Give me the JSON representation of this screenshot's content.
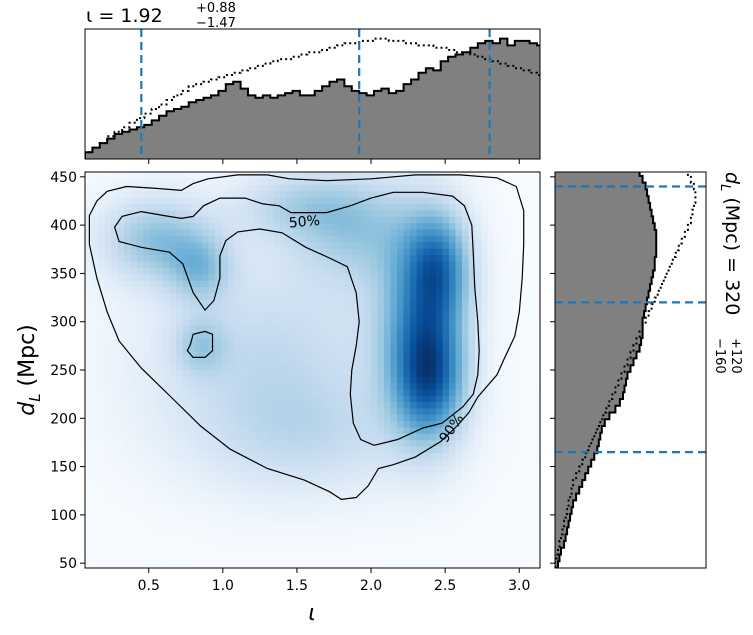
{
  "chart_data": [
    {
      "type": "heatmap",
      "panel": "joint",
      "xlabel": "ι",
      "ylabel_main": "d",
      "ylabel_sub": "L",
      "ylabel_unit": " (Mpc)",
      "xlim": [
        0.07,
        3.14
      ],
      "ylim": [
        45,
        455
      ],
      "xticks": [
        0.5,
        1.0,
        1.5,
        2.0,
        2.5,
        3.0
      ],
      "yticks": [
        50,
        100,
        150,
        200,
        250,
        300,
        350,
        400,
        450
      ],
      "colormap": "Blues",
      "density_blobs": [
        {
          "x": 2.4,
          "y": 245,
          "sx": 0.16,
          "sy": 45,
          "w": 1.0
        },
        {
          "x": 2.45,
          "y": 355,
          "sx": 0.15,
          "sy": 40,
          "w": 0.85
        },
        {
          "x": 2.3,
          "y": 300,
          "sx": 0.2,
          "sy": 70,
          "w": 0.55
        },
        {
          "x": 0.55,
          "y": 385,
          "sx": 0.25,
          "sy": 30,
          "w": 0.5
        },
        {
          "x": 0.85,
          "y": 355,
          "sx": 0.15,
          "sy": 25,
          "w": 0.4
        },
        {
          "x": 1.9,
          "y": 395,
          "sx": 0.3,
          "sy": 40,
          "w": 0.4
        },
        {
          "x": 1.3,
          "y": 260,
          "sx": 0.55,
          "sy": 70,
          "w": 0.3
        },
        {
          "x": 0.85,
          "y": 275,
          "sx": 0.12,
          "sy": 20,
          "w": 0.3
        },
        {
          "x": 1.5,
          "y": 420,
          "sx": 0.3,
          "sy": 25,
          "w": 0.3
        },
        {
          "x": 1.6,
          "y": 180,
          "sx": 0.5,
          "sy": 40,
          "w": 0.2
        }
      ],
      "contours": [
        {
          "label": "50%",
          "label_at": [
            1.55,
            404
          ],
          "label_rotation": -5,
          "points": [
            [
              0.27,
              398
            ],
            [
              0.32,
              409
            ],
            [
              0.45,
              414
            ],
            [
              0.6,
              410
            ],
            [
              0.72,
              407
            ],
            [
              0.8,
              409
            ],
            [
              0.87,
              420
            ],
            [
              0.98,
              428
            ],
            [
              1.15,
              428
            ],
            [
              1.27,
              422
            ],
            [
              1.38,
              420
            ],
            [
              1.46,
              413
            ],
            [
              1.7,
              413
            ],
            [
              1.86,
              420
            ],
            [
              2.0,
              428
            ],
            [
              2.15,
              434
            ],
            [
              2.35,
              434
            ],
            [
              2.55,
              430
            ],
            [
              2.63,
              420
            ],
            [
              2.68,
              400
            ],
            [
              2.69,
              370
            ],
            [
              2.7,
              335
            ],
            [
              2.72,
              300
            ],
            [
              2.73,
              270
            ],
            [
              2.72,
              245
            ],
            [
              2.69,
              225
            ],
            [
              2.62,
              212
            ],
            [
              2.48,
              195
            ],
            [
              2.35,
              190
            ],
            [
              2.18,
              178
            ],
            [
              2.02,
              172
            ],
            [
              1.93,
              178
            ],
            [
              1.88,
              195
            ],
            [
              1.86,
              225
            ],
            [
              1.87,
              250
            ],
            [
              1.9,
              275
            ],
            [
              1.92,
              300
            ],
            [
              1.9,
              330
            ],
            [
              1.84,
              357
            ],
            [
              1.72,
              366
            ],
            [
              1.56,
              377
            ],
            [
              1.4,
              392
            ],
            [
              1.25,
              396
            ],
            [
              1.1,
              393
            ],
            [
              1.02,
              384
            ],
            [
              0.98,
              368
            ],
            [
              0.98,
              345
            ],
            [
              0.94,
              322
            ],
            [
              0.88,
              312
            ],
            [
              0.8,
              330
            ],
            [
              0.73,
              360
            ],
            [
              0.64,
              372
            ],
            [
              0.45,
              377
            ],
            [
              0.3,
              383
            ],
            [
              0.27,
              398
            ]
          ]
        },
        {
          "label": "",
          "points": [
            [
              0.78,
              276
            ],
            [
              0.8,
              287
            ],
            [
              0.88,
              290
            ],
            [
              0.93,
              287
            ],
            [
              0.93,
              270
            ],
            [
              0.88,
              263
            ],
            [
              0.8,
              263
            ],
            [
              0.76,
              270
            ],
            [
              0.78,
              276
            ]
          ]
        },
        {
          "label": "90%",
          "label_at": [
            2.54,
            190
          ],
          "label_rotation": -55,
          "points": [
            [
              0.1,
              410
            ],
            [
              0.15,
              425
            ],
            [
              0.22,
              435
            ],
            [
              0.35,
              440
            ],
            [
              0.55,
              438
            ],
            [
              0.72,
              436
            ],
            [
              0.8,
              443
            ],
            [
              0.9,
              448
            ],
            [
              1.1,
              452
            ],
            [
              1.3,
              452
            ],
            [
              1.45,
              448
            ],
            [
              1.7,
              446
            ],
            [
              2.0,
              448
            ],
            [
              2.3,
              452
            ],
            [
              2.6,
              452
            ],
            [
              2.85,
              449
            ],
            [
              2.98,
              440
            ],
            [
              3.03,
              415
            ],
            [
              3.03,
              380
            ],
            [
              3.02,
              345
            ],
            [
              3.0,
              310
            ],
            [
              2.97,
              285
            ],
            [
              2.9,
              262
            ],
            [
              2.85,
              245
            ],
            [
              2.72,
              222
            ],
            [
              2.66,
              206
            ],
            [
              2.58,
              192
            ],
            [
              2.47,
              176
            ],
            [
              2.3,
              160
            ],
            [
              2.15,
              152
            ],
            [
              2.05,
              148
            ],
            [
              1.98,
              130
            ],
            [
              1.9,
              118
            ],
            [
              1.8,
              116
            ],
            [
              1.72,
              124
            ],
            [
              1.55,
              136
            ],
            [
              1.3,
              148
            ],
            [
              1.05,
              168
            ],
            [
              0.85,
              192
            ],
            [
              0.65,
              222
            ],
            [
              0.45,
              252
            ],
            [
              0.3,
              280
            ],
            [
              0.22,
              310
            ],
            [
              0.15,
              345
            ],
            [
              0.1,
              380
            ],
            [
              0.1,
              410
            ]
          ]
        }
      ]
    },
    {
      "type": "area",
      "panel": "top-marginal",
      "title_prefix": "ι = 1.92",
      "title_sup": "+0.88",
      "title_sub": "−1.47",
      "xlim": [
        0.07,
        3.14
      ],
      "median": 1.92,
      "quantile_lines": [
        0.45,
        1.92,
        2.8
      ],
      "bin_start": 0.07,
      "bin_width": 0.05,
      "posterior": [
        3,
        5,
        7,
        9,
        11,
        12,
        13,
        14,
        15,
        17,
        19,
        21,
        22,
        23,
        25,
        26,
        27,
        28,
        30,
        33,
        34,
        31,
        28,
        27,
        28,
        27,
        28,
        29,
        30,
        28,
        28,
        30,
        32,
        34,
        35,
        32,
        30,
        29,
        28,
        30,
        31,
        29,
        30,
        33,
        35,
        38,
        40,
        39,
        43,
        45,
        46,
        47,
        49,
        51,
        52,
        51,
        53,
        50,
        52,
        52,
        51,
        50,
        49,
        47,
        44,
        41,
        37,
        34,
        30,
        28,
        25,
        22,
        19,
        16,
        13,
        11,
        9,
        8,
        6,
        4,
        3,
        2,
        1
      ],
      "prior": [
        3,
        5,
        7,
        10,
        12,
        14,
        16,
        18,
        20,
        22,
        24,
        26,
        28,
        30,
        32,
        33,
        34,
        35,
        36,
        37,
        38,
        39,
        40,
        41,
        42,
        43,
        44,
        44,
        45,
        46,
        47,
        47,
        48,
        49,
        50,
        51,
        51,
        52,
        52,
        53,
        53,
        52,
        52,
        51,
        51,
        50,
        50,
        49,
        49,
        48,
        47,
        47,
        46,
        45,
        44,
        43,
        42,
        41,
        40,
        39,
        38,
        37,
        35,
        33,
        31,
        29,
        27,
        25,
        23,
        20,
        17,
        14,
        12,
        10,
        8,
        6,
        5,
        4,
        3,
        2,
        1,
        1,
        1
      ]
    },
    {
      "type": "area",
      "panel": "right-marginal",
      "side_label_prefix": "d",
      "side_label_sub": "L",
      "side_label_mid": " (Mpc) = 320",
      "side_label_sup": "+120",
      "side_label_sub2": "−160",
      "ylim": [
        45,
        455
      ],
      "median": 320,
      "quantile_lines": [
        165,
        320,
        440
      ],
      "bin_start": 45,
      "bin_width": 7,
      "posterior": [
        0.02,
        0.03,
        0.04,
        0.06,
        0.07,
        0.08,
        0.09,
        0.1,
        0.11,
        0.12,
        0.14,
        0.16,
        0.18,
        0.2,
        0.22,
        0.24,
        0.26,
        0.28,
        0.29,
        0.3,
        0.31,
        0.33,
        0.36,
        0.4,
        0.43,
        0.45,
        0.46,
        0.47,
        0.48,
        0.5,
        0.52,
        0.54,
        0.56,
        0.57,
        0.58,
        0.58,
        0.58,
        0.59,
        0.6,
        0.61,
        0.62,
        0.63,
        0.64,
        0.65,
        0.66,
        0.66,
        0.67,
        0.67,
        0.67,
        0.67,
        0.66,
        0.65,
        0.64,
        0.63,
        0.62,
        0.61,
        0.6,
        0.58,
        0.56,
        0.52,
        0.47
      ],
      "prior": [
        0.0,
        0.01,
        0.02,
        0.03,
        0.04,
        0.05,
        0.06,
        0.07,
        0.08,
        0.09,
        0.1,
        0.11,
        0.12,
        0.14,
        0.16,
        0.18,
        0.2,
        0.22,
        0.24,
        0.26,
        0.28,
        0.3,
        0.32,
        0.34,
        0.36,
        0.38,
        0.4,
        0.42,
        0.44,
        0.46,
        0.48,
        0.5,
        0.52,
        0.54,
        0.56,
        0.58,
        0.6,
        0.62,
        0.64,
        0.66,
        0.68,
        0.7,
        0.72,
        0.74,
        0.76,
        0.78,
        0.8,
        0.82,
        0.84,
        0.86,
        0.88,
        0.9,
        0.91,
        0.92,
        0.93,
        0.93,
        0.92,
        0.9,
        0.88,
        0.85,
        0.8
      ]
    }
  ],
  "colors": {
    "median_line": "#1f77b4",
    "hist_fill": "#808080",
    "hist_edge": "#000000",
    "contour": "#000000"
  }
}
